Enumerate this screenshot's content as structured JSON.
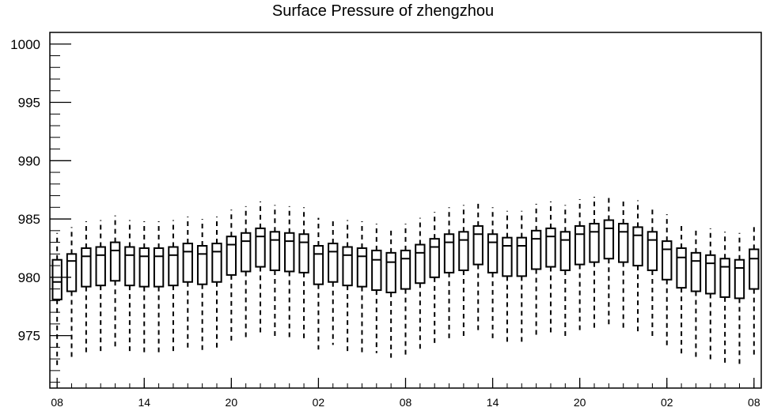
{
  "chart_data": {
    "type": "box",
    "title": "Surface Pressure of zhengzhou",
    "xlabel": "",
    "ylabel": "",
    "ylim": [
      970.5,
      1001
    ],
    "yticks": [
      975,
      980,
      985,
      990,
      995,
      1000
    ],
    "xtick_labels": [
      "08",
      "14",
      "20",
      "02",
      "08",
      "14",
      "20",
      "02",
      "08"
    ],
    "xtick_positions": [
      0,
      6,
      12,
      18,
      24,
      30,
      36,
      42,
      48
    ],
    "grid": false,
    "boxes": [
      {
        "x": 0,
        "whislo": 972.3,
        "q1": 978.1,
        "med": 979.6,
        "q3": 981.5,
        "whishi": 983.8
      },
      {
        "x": 1,
        "whislo": 973.1,
        "q1": 978.8,
        "med": 981.4,
        "q3": 982.0,
        "whishi": 984.3
      },
      {
        "x": 2,
        "whislo": 973.4,
        "q1": 979.2,
        "med": 981.8,
        "q3": 982.5,
        "whishi": 984.8
      },
      {
        "x": 3,
        "whislo": 973.5,
        "q1": 979.3,
        "med": 981.9,
        "q3": 982.6,
        "whishi": 984.9
      },
      {
        "x": 4,
        "whislo": 973.9,
        "q1": 979.7,
        "med": 982.3,
        "q3": 983.0,
        "whishi": 985.3
      },
      {
        "x": 5,
        "whislo": 973.5,
        "q1": 979.3,
        "med": 981.9,
        "q3": 982.6,
        "whishi": 984.9
      },
      {
        "x": 6,
        "whislo": 973.4,
        "q1": 979.2,
        "med": 981.8,
        "q3": 982.5,
        "whishi": 984.8
      },
      {
        "x": 7,
        "whislo": 973.4,
        "q1": 979.2,
        "med": 981.8,
        "q3": 982.5,
        "whishi": 984.8
      },
      {
        "x": 8,
        "whislo": 973.5,
        "q1": 979.3,
        "med": 981.9,
        "q3": 982.6,
        "whishi": 984.9
      },
      {
        "x": 9,
        "whislo": 973.8,
        "q1": 979.6,
        "med": 982.2,
        "q3": 982.9,
        "whishi": 985.2
      },
      {
        "x": 10,
        "whislo": 973.7,
        "q1": 979.4,
        "med": 982.0,
        "q3": 982.7,
        "whishi": 985.0
      },
      {
        "x": 11,
        "whislo": 973.8,
        "q1": 979.6,
        "med": 982.2,
        "q3": 982.9,
        "whishi": 985.2
      },
      {
        "x": 12,
        "whislo": 974.3,
        "q1": 980.2,
        "med": 982.8,
        "q3": 983.5,
        "whishi": 985.8
      },
      {
        "x": 13,
        "whislo": 974.7,
        "q1": 980.5,
        "med": 983.1,
        "q3": 983.8,
        "whishi": 986.1
      },
      {
        "x": 14,
        "whislo": 975.0,
        "q1": 980.9,
        "med": 983.5,
        "q3": 984.2,
        "whishi": 986.5
      },
      {
        "x": 15,
        "whislo": 974.8,
        "q1": 980.6,
        "med": 983.2,
        "q3": 983.9,
        "whishi": 986.2
      },
      {
        "x": 16,
        "whislo": 974.7,
        "q1": 980.5,
        "med": 983.1,
        "q3": 983.8,
        "whishi": 986.1
      },
      {
        "x": 17,
        "whislo": 974.6,
        "q1": 980.4,
        "med": 983.0,
        "q3": 983.7,
        "whishi": 986.0
      },
      {
        "x": 18,
        "whislo": 973.8,
        "q1": 979.4,
        "med": 982.0,
        "q3": 982.7,
        "whishi": 985.1
      },
      {
        "x": 19,
        "whislo": 974.2,
        "q1": 979.6,
        "med": 982.2,
        "q3": 982.9,
        "whishi": 985.0
      },
      {
        "x": 20,
        "whislo": 973.5,
        "q1": 979.3,
        "med": 981.9,
        "q3": 982.6,
        "whishi": 984.9
      },
      {
        "x": 21,
        "whislo": 973.5,
        "q1": 979.2,
        "med": 981.8,
        "q3": 982.5,
        "whishi": 984.8
      },
      {
        "x": 22,
        "whislo": 973.5,
        "q1": 978.9,
        "med": 981.5,
        "q3": 982.3,
        "whishi": 984.6
      },
      {
        "x": 23,
        "whislo": 973.1,
        "q1": 978.7,
        "med": 981.3,
        "q3": 982.1,
        "whishi": 984.3
      },
      {
        "x": 24,
        "whislo": 973.3,
        "q1": 979.0,
        "med": 981.6,
        "q3": 982.3,
        "whishi": 984.6
      },
      {
        "x": 25,
        "whislo": 973.8,
        "q1": 979.5,
        "med": 982.1,
        "q3": 982.8,
        "whishi": 985.1
      },
      {
        "x": 26,
        "whislo": 974.3,
        "q1": 980.0,
        "med": 982.6,
        "q3": 983.3,
        "whishi": 985.6
      },
      {
        "x": 27,
        "whislo": 974.6,
        "q1": 980.4,
        "med": 983.0,
        "q3": 983.7,
        "whishi": 986.0
      },
      {
        "x": 28,
        "whislo": 974.8,
        "q1": 980.6,
        "med": 983.2,
        "q3": 983.9,
        "whishi": 986.2
      },
      {
        "x": 29,
        "whislo": 975.2,
        "q1": 981.1,
        "med": 983.7,
        "q3": 984.4,
        "whishi": 986.6
      },
      {
        "x": 30,
        "whislo": 974.6,
        "q1": 980.4,
        "med": 983.0,
        "q3": 983.7,
        "whishi": 986.0
      },
      {
        "x": 31,
        "whislo": 974.3,
        "q1": 980.1,
        "med": 982.7,
        "q3": 983.4,
        "whishi": 985.7
      },
      {
        "x": 32,
        "whislo": 974.3,
        "q1": 980.1,
        "med": 982.7,
        "q3": 983.4,
        "whishi": 985.7
      },
      {
        "x": 33,
        "whislo": 974.9,
        "q1": 980.7,
        "med": 983.3,
        "q3": 984.0,
        "whishi": 986.3
      },
      {
        "x": 34,
        "whislo": 975.0,
        "q1": 980.9,
        "med": 983.5,
        "q3": 984.2,
        "whishi": 986.5
      },
      {
        "x": 35,
        "whislo": 974.8,
        "q1": 980.6,
        "med": 983.2,
        "q3": 983.9,
        "whishi": 986.2
      },
      {
        "x": 36,
        "whislo": 975.3,
        "q1": 981.1,
        "med": 983.7,
        "q3": 984.4,
        "whishi": 986.7
      },
      {
        "x": 37,
        "whislo": 975.5,
        "q1": 981.3,
        "med": 983.9,
        "q3": 984.6,
        "whishi": 986.9
      },
      {
        "x": 38,
        "whislo": 975.7,
        "q1": 981.6,
        "med": 984.2,
        "q3": 984.9,
        "whishi": 987.1
      },
      {
        "x": 39,
        "whislo": 975.5,
        "q1": 981.3,
        "med": 983.9,
        "q3": 984.6,
        "whishi": 986.8
      },
      {
        "x": 40,
        "whislo": 975.2,
        "q1": 981.0,
        "med": 983.6,
        "q3": 984.3,
        "whishi": 986.6
      },
      {
        "x": 41,
        "whislo": 974.8,
        "q1": 980.6,
        "med": 983.2,
        "q3": 983.9,
        "whishi": 986.1
      },
      {
        "x": 42,
        "whislo": 974.0,
        "q1": 979.8,
        "med": 982.4,
        "q3": 983.1,
        "whishi": 985.4
      },
      {
        "x": 43,
        "whislo": 973.4,
        "q1": 979.1,
        "med": 981.7,
        "q3": 982.5,
        "whishi": 984.7
      },
      {
        "x": 44,
        "whislo": 973.0,
        "q1": 978.8,
        "med": 981.4,
        "q3": 982.1,
        "whishi": 984.3
      },
      {
        "x": 45,
        "whislo": 972.9,
        "q1": 978.6,
        "med": 981.2,
        "q3": 981.9,
        "whishi": 984.2
      },
      {
        "x": 46,
        "whislo": 972.5,
        "q1": 978.3,
        "med": 980.9,
        "q3": 981.6,
        "whishi": 983.9
      },
      {
        "x": 47,
        "whislo": 972.5,
        "q1": 978.2,
        "med": 980.8,
        "q3": 981.5,
        "whishi": 983.8
      },
      {
        "x": 48,
        "whislo": 973.3,
        "q1": 979.0,
        "med": 981.6,
        "q3": 982.4,
        "whishi": 984.6
      }
    ]
  }
}
